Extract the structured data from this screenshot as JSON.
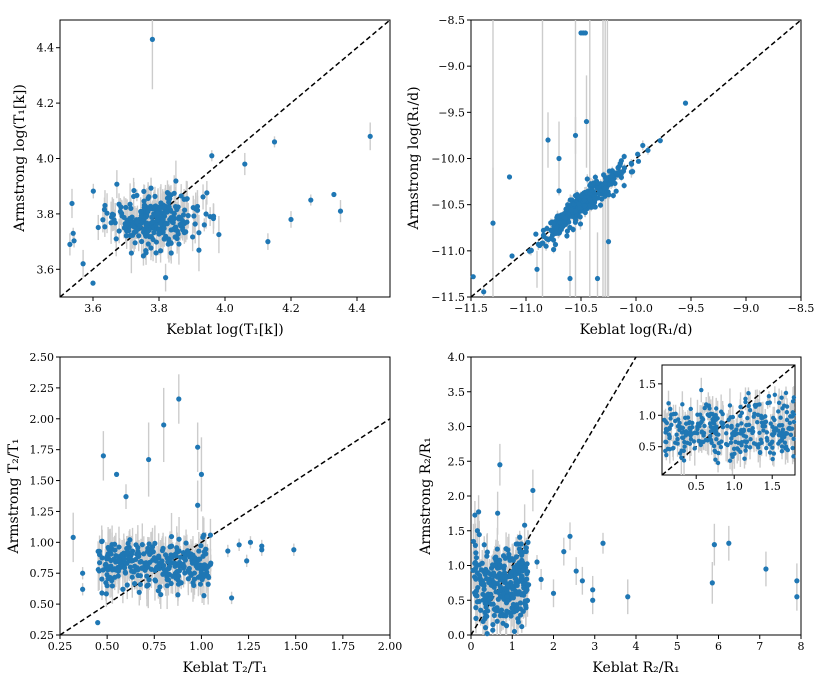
{
  "colors": {
    "point": "#1f77b4",
    "error": "#cccccc",
    "axis": "#000000",
    "identity": "#000000"
  },
  "chart_data": [
    {
      "type": "scatter",
      "title": "",
      "xlabel": "Keblat log(T₁[k])",
      "ylabel": "Armstrong log(T₁[k])",
      "xlim": [
        3.5,
        4.5
      ],
      "ylim": [
        3.5,
        4.5
      ],
      "xticks": [
        3.6,
        3.8,
        4.0,
        4.2,
        4.4
      ],
      "xticklabels": [
        "3.6",
        "3.8",
        "4.0",
        "4.2",
        "4.4"
      ],
      "yticks": [
        3.6,
        3.8,
        4.0,
        4.2,
        4.4
      ],
      "yticklabels": [
        "3.6",
        "3.8",
        "4.0",
        "4.2",
        "4.4"
      ],
      "reference_line": "y = x (dashed)",
      "cluster": {
        "center": [
          3.78,
          3.78
        ],
        "spread": [
          0.07,
          0.05
        ],
        "count": 260,
        "err": 0.05
      },
      "outliers": [
        [
          3.78,
          4.43,
          0.18
        ],
        [
          4.44,
          4.08,
          0.05
        ],
        [
          4.33,
          3.87,
          0.0
        ],
        [
          4.35,
          3.81,
          0.04
        ],
        [
          4.26,
          3.85,
          0.02
        ],
        [
          4.13,
          3.7,
          0.03
        ],
        [
          4.06,
          3.98,
          0.04
        ],
        [
          3.96,
          4.01,
          0.02
        ],
        [
          3.53,
          3.69,
          0.04
        ],
        [
          3.57,
          3.62,
          0.05
        ],
        [
          3.6,
          3.55,
          0.0
        ],
        [
          3.82,
          3.57,
          0.05
        ],
        [
          3.54,
          3.73,
          0.02
        ],
        [
          4.15,
          4.06,
          0.02
        ],
        [
          4.2,
          3.78,
          0.03
        ]
      ]
    },
    {
      "type": "scatter",
      "title": "",
      "xlabel": "Keblat log(R₁/d)",
      "ylabel": "Armstrong log(R₁/d)",
      "xlim": [
        -11.5,
        -8.5
      ],
      "ylim": [
        -11.5,
        -8.5
      ],
      "xticks": [
        -11.5,
        -11.0,
        -10.5,
        -10.0,
        -9.5,
        -9.0,
        -8.5
      ],
      "xticklabels": [
        "−11.5",
        "−11.0",
        "−10.5",
        "−10.0",
        "−9.5",
        "−9.0",
        "−8.5"
      ],
      "yticks": [
        -11.5,
        -11.0,
        -10.5,
        -10.0,
        -9.5,
        -9.0,
        -8.5
      ],
      "yticklabels": [
        "−11.5",
        "−11.0",
        "−10.5",
        "−10.0",
        "−9.5",
        "−9.0",
        "−8.5"
      ],
      "reference_line": "y = x (dashed)",
      "cluster": {
        "center": [
          -10.5,
          -10.5
        ],
        "spread": [
          0.22,
          0.22
        ],
        "count": 340,
        "err": 0.04,
        "correlated": true
      },
      "outliers": [
        [
          -10.5,
          -8.64,
          0.0
        ],
        [
          -10.48,
          -8.64,
          0.0
        ],
        [
          -10.46,
          -8.64,
          0.0
        ],
        [
          -9.55,
          -9.4,
          0.0
        ],
        [
          -11.48,
          -11.28,
          0.0
        ],
        [
          -11.3,
          -10.7,
          0.6
        ],
        [
          -10.7,
          -10.0,
          0.4
        ],
        [
          -10.55,
          -9.75,
          0.2
        ],
        [
          -10.35,
          -11.3,
          0.5
        ],
        [
          -10.6,
          -11.3,
          0.3
        ],
        [
          -10.9,
          -11.2,
          0.2
        ],
        [
          -10.8,
          -9.8,
          0.3
        ],
        [
          -10.25,
          -10.9,
          0.6
        ],
        [
          -10.45,
          -9.6,
          0.5
        ],
        [
          -11.15,
          -10.2,
          0.0
        ],
        [
          -10.7,
          -10.35,
          0.0
        ]
      ],
      "long_errorbars_x": [
        -11.3,
        -10.85,
        -10.55,
        -10.42,
        -10.3,
        -10.28,
        -10.26
      ]
    },
    {
      "type": "scatter",
      "title": "",
      "xlabel": "Keblat T₂/T₁",
      "ylabel": "Armstrong T₂/T₁",
      "xlim": [
        0.25,
        2.0
      ],
      "ylim": [
        0.25,
        2.5
      ],
      "xticks": [
        0.25,
        0.5,
        0.75,
        1.0,
        1.25,
        1.5,
        1.75,
        2.0
      ],
      "xticklabels": [
        "0.25",
        "0.50",
        "0.75",
        "1.00",
        "1.25",
        "1.50",
        "1.75",
        "2.00"
      ],
      "yticks": [
        0.25,
        0.5,
        0.75,
        1.0,
        1.25,
        1.5,
        1.75,
        2.0,
        2.25,
        2.5
      ],
      "yticklabels": [
        "0.25",
        "0.50",
        "0.75",
        "1.00",
        "1.25",
        "1.50",
        "1.75",
        "2.00",
        "2.25",
        "2.50"
      ],
      "reference_line": "y = x (dashed)",
      "cluster": {
        "center": [
          0.78,
          0.82
        ],
        "spread": [
          0.16,
          0.1
        ],
        "count": 300,
        "err": 0.12,
        "xrange": [
          0.45,
          1.05
        ]
      },
      "outliers": [
        [
          0.88,
          2.16,
          0.2
        ],
        [
          0.48,
          1.7,
          0.2
        ],
        [
          0.8,
          1.95,
          0.3
        ],
        [
          0.98,
          1.77,
          0.2
        ],
        [
          1.0,
          1.55,
          0.3
        ],
        [
          0.72,
          1.67,
          0.3
        ],
        [
          0.55,
          1.55,
          0.0
        ],
        [
          0.6,
          1.37,
          0.1
        ],
        [
          0.32,
          1.04,
          0.2
        ],
        [
          0.37,
          0.75,
          0.05
        ],
        [
          0.37,
          0.62,
          0.05
        ],
        [
          0.45,
          0.35,
          0.0
        ],
        [
          1.49,
          0.94,
          0.05
        ],
        [
          1.32,
          0.94,
          0.05
        ],
        [
          1.32,
          0.97,
          0.05
        ],
        [
          1.26,
          1.0,
          0.05
        ],
        [
          1.24,
          0.85,
          0.05
        ],
        [
          1.14,
          0.93,
          0.05
        ],
        [
          1.2,
          0.98,
          0.05
        ],
        [
          1.16,
          0.55,
          0.05
        ],
        [
          0.98,
          1.3,
          0.2
        ]
      ]
    },
    {
      "type": "scatter",
      "title": "",
      "xlabel": "Keblat R₂/R₁",
      "ylabel": "Armstrong R₂/R₁",
      "xlim": [
        0,
        8
      ],
      "ylim": [
        0,
        4
      ],
      "xticks": [
        0,
        1,
        2,
        3,
        4,
        5,
        6,
        7,
        8
      ],
      "xticklabels": [
        "0",
        "1",
        "2",
        "3",
        "4",
        "5",
        "6",
        "7",
        "8"
      ],
      "yticks": [
        0,
        0.5,
        1,
        1.5,
        2,
        2.5,
        3,
        3.5,
        4
      ],
      "yticklabels": [
        "0.0",
        "0.5",
        "1.0",
        "1.5",
        "2.0",
        "2.5",
        "3.0",
        "3.5",
        "4.0"
      ],
      "reference_line": "y = x (dashed)",
      "cluster": {
        "center": [
          0.55,
          0.75
        ],
        "spread": [
          0.3,
          0.3
        ],
        "count": 300,
        "err": 0.2,
        "xrange": [
          0.05,
          1.4
        ]
      },
      "outliers": [
        [
          0.7,
          2.45,
          0.3
        ],
        [
          1.5,
          2.08,
          0.3
        ],
        [
          1.3,
          1.58,
          0.3
        ],
        [
          2.25,
          1.2,
          0.2
        ],
        [
          2.4,
          1.42,
          0.2
        ],
        [
          2.55,
          0.92,
          0.2
        ],
        [
          2.7,
          0.78,
          0.2
        ],
        [
          2.95,
          0.65,
          0.2
        ],
        [
          3.2,
          1.32,
          0.15
        ],
        [
          2.95,
          0.5,
          0.2
        ],
        [
          3.8,
          0.55,
          0.25
        ],
        [
          5.9,
          1.3,
          0.3
        ],
        [
          5.85,
          0.75,
          0.3
        ],
        [
          6.25,
          1.32,
          0.25
        ],
        [
          7.15,
          0.95,
          0.25
        ],
        [
          7.9,
          0.78,
          0.25
        ],
        [
          7.9,
          0.55,
          0.2
        ],
        [
          2.0,
          0.6,
          0.2
        ],
        [
          1.7,
          0.8,
          0.15
        ],
        [
          1.6,
          1.05,
          0.1
        ]
      ],
      "inset": {
        "xlim": [
          0.05,
          1.8
        ],
        "ylim": [
          0.05,
          1.8
        ],
        "xticks": [
          0.5,
          1.0,
          1.5
        ],
        "xticklabels": [
          "0.5",
          "1.0",
          "1.5"
        ],
        "yticks": [
          0.5,
          1.0,
          1.5
        ],
        "yticklabels": [
          "0.5",
          "1.0",
          "1.5"
        ],
        "cluster": {
          "center": [
            0.68,
            0.75
          ],
          "spread": [
            0.28,
            0.24
          ],
          "count": 330,
          "err": 0.18,
          "xrange": [
            0.08,
            1.8
          ]
        }
      }
    }
  ]
}
